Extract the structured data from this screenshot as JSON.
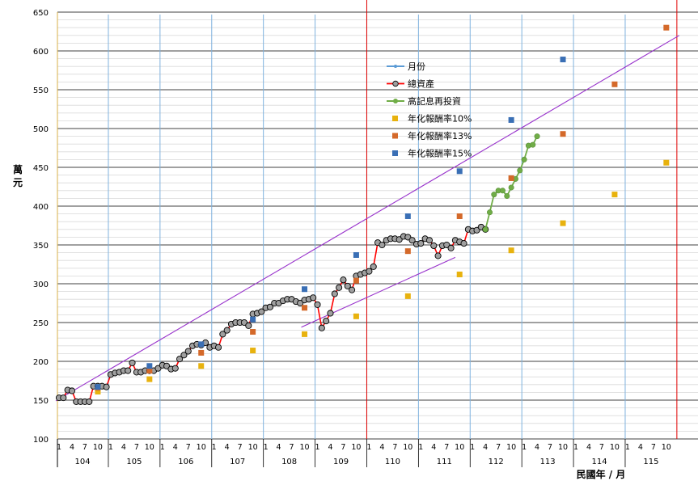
{
  "chart_data": {
    "type": "line",
    "ylabel": "萬元",
    "xlabel": "民國年 / 月",
    "ylim": [
      100,
      650
    ],
    "yticks": [
      100,
      150,
      200,
      250,
      300,
      350,
      400,
      450,
      500,
      550,
      600,
      650
    ],
    "x_month_ticks": [
      "1",
      "4",
      "7",
      "10"
    ],
    "years": [
      "104",
      "105",
      "106",
      "107",
      "108",
      "109",
      "110",
      "111",
      "112",
      "113",
      "114",
      "115"
    ],
    "grid": true,
    "legend_position": "right-top-inside",
    "colors": {
      "month_marker": "#5b9bd5",
      "total": "#ff0000",
      "reinvest": "#70ad47",
      "r10": "#e8b20e",
      "r13": "#d4692a",
      "r15": "#3a6fb5",
      "trend": "#9933cc",
      "year_line": "#7fb2de",
      "red_line": "#e00000"
    },
    "legend": [
      {
        "label": "月份",
        "style": "month"
      },
      {
        "label": "總資產",
        "style": "total"
      },
      {
        "label": "高記息再投資",
        "style": "reinvest"
      },
      {
        "label": "年化報酬率10%",
        "style": "r10"
      },
      {
        "label": "年化報酬率13%",
        "style": "r13"
      },
      {
        "label": "年化報酬率15%",
        "style": "r15"
      }
    ],
    "series": [
      {
        "name": "總資產",
        "start": "104/01",
        "values": [
          153,
          153,
          163,
          162,
          148,
          148,
          148,
          148,
          168,
          168,
          168,
          167,
          183,
          185,
          186,
          188,
          188,
          198,
          186,
          186,
          188,
          188,
          188,
          191,
          195,
          194,
          190,
          191,
          203,
          208,
          213,
          220,
          222,
          221,
          224,
          218,
          220,
          218,
          235,
          240,
          248,
          250,
          250,
          250,
          246,
          261,
          262,
          264,
          269,
          270,
          275,
          275,
          278,
          280,
          280,
          277,
          275,
          279,
          280,
          282,
          273,
          243,
          252,
          262,
          287,
          295,
          305,
          297,
          292,
          310,
          312,
          314,
          316,
          322,
          353,
          350,
          356,
          358,
          358,
          357,
          361,
          360,
          356,
          351,
          352,
          358,
          356,
          349,
          336,
          349,
          350,
          346,
          356,
          354,
          352,
          370,
          368,
          369,
          373,
          370
        ],
        "total_points": 100
      },
      {
        "name": "高記息再投資",
        "start": "112/04",
        "values": [
          370,
          392,
          415,
          420,
          420,
          413,
          424,
          435,
          446,
          460,
          478,
          479,
          490
        ]
      }
    ],
    "annual_markers": [
      {
        "name": "年化報酬率10%",
        "points": [
          {
            "x": "104/10",
            "y": 161
          },
          {
            "x": "105/10",
            "y": 177
          },
          {
            "x": "106/10",
            "y": 194
          },
          {
            "x": "107/10",
            "y": 214
          },
          {
            "x": "108/10",
            "y": 235
          },
          {
            "x": "109/10",
            "y": 258
          },
          {
            "x": "110/10",
            "y": 284
          },
          {
            "x": "111/10",
            "y": 312
          },
          {
            "x": "112/10",
            "y": 343
          },
          {
            "x": "113/10",
            "y": 378
          },
          {
            "x": "114/10",
            "y": 415
          },
          {
            "x": "115/10",
            "y": 456
          }
        ]
      },
      {
        "name": "年化報酬率13%",
        "points": [
          {
            "x": "104/10",
            "y": 166
          },
          {
            "x": "105/10",
            "y": 188
          },
          {
            "x": "106/10",
            "y": 211
          },
          {
            "x": "107/10",
            "y": 238
          },
          {
            "x": "108/10",
            "y": 269
          },
          {
            "x": "109/10",
            "y": 304
          },
          {
            "x": "110/10",
            "y": 342
          },
          {
            "x": "111/10",
            "y": 387
          },
          {
            "x": "112/10",
            "y": 436
          },
          {
            "x": "113/10",
            "y": 493
          },
          {
            "x": "114/10",
            "y": 557
          },
          {
            "x": "115/10",
            "y": 630
          }
        ]
      },
      {
        "name": "年化報酬率15%",
        "points": [
          {
            "x": "104/10",
            "y": 167
          },
          {
            "x": "105/10",
            "y": 194
          },
          {
            "x": "106/10",
            "y": 222
          },
          {
            "x": "107/10",
            "y": 254
          },
          {
            "x": "108/10",
            "y": 293
          },
          {
            "x": "109/10",
            "y": 337
          },
          {
            "x": "110/10",
            "y": 387
          },
          {
            "x": "111/10",
            "y": 445
          },
          {
            "x": "112/10",
            "y": 511
          },
          {
            "x": "113/10",
            "y": 589
          }
        ]
      }
    ],
    "trend_lines": [
      {
        "from": {
          "x": "104/01",
          "y": 149
        },
        "to": {
          "x": "116/01",
          "y": 620
        }
      },
      {
        "from": {
          "x": "108/10",
          "y": 244
        },
        "to": {
          "x": "111/09",
          "y": 334
        }
      }
    ],
    "year_markers": [
      "105/01",
      "106/01",
      "107/01",
      "108/01",
      "109/01",
      "110/01",
      "111/01",
      "112/01",
      "113/01",
      "114/01",
      "115/01"
    ],
    "red_markers": [
      "110/01",
      "116/01"
    ]
  }
}
